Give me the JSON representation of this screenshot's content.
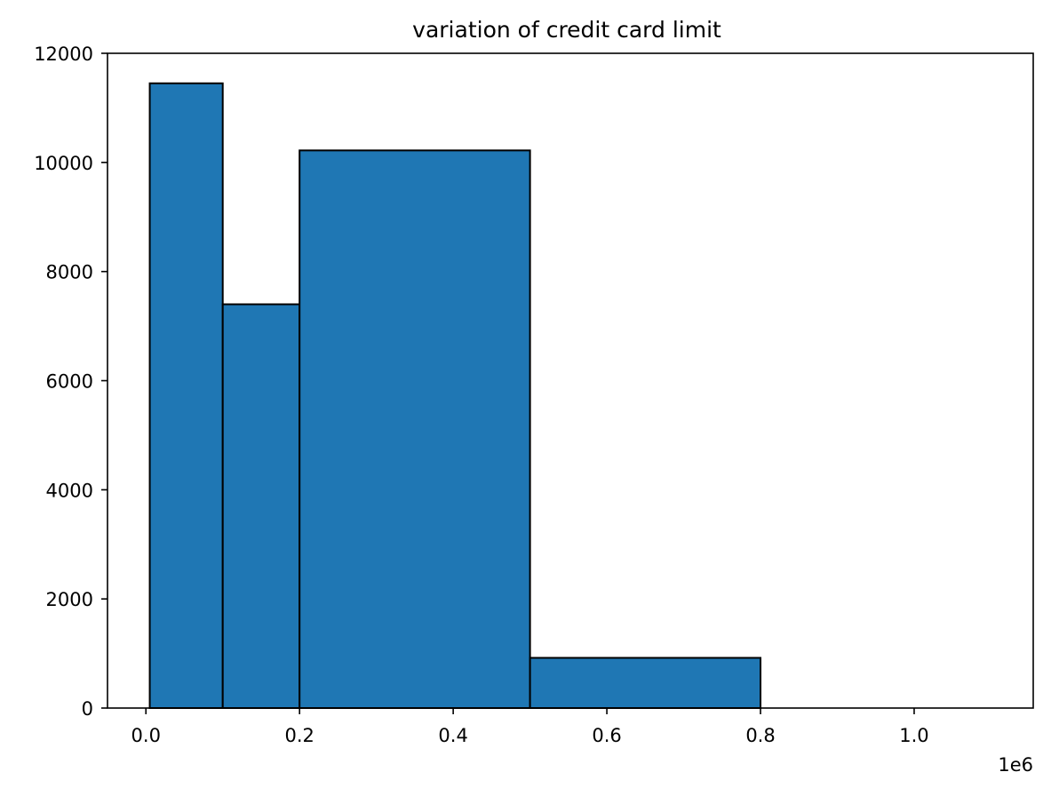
{
  "chart_data": {
    "type": "bar",
    "title": "variation of credit card limit",
    "xlabel": "",
    "ylabel": "",
    "x_offset_label": "1e6",
    "bins": [
      {
        "x0": 0.005,
        "x1": 0.1,
        "value": 11450
      },
      {
        "x0": 0.1,
        "x1": 0.2,
        "value": 7400
      },
      {
        "x0": 0.2,
        "x1": 0.5,
        "value": 10220
      },
      {
        "x0": 0.5,
        "x1": 0.8,
        "value": 920
      },
      {
        "x0": 0.8,
        "x1": 1.1,
        "value": 0
      }
    ],
    "xlim": [
      -0.05,
      1.155
    ],
    "ylim": [
      0,
      12000
    ],
    "xticks": [
      {
        "value": 0.0,
        "label": "0.0"
      },
      {
        "value": 0.2,
        "label": "0.2"
      },
      {
        "value": 0.4,
        "label": "0.4"
      },
      {
        "value": 0.6,
        "label": "0.6"
      },
      {
        "value": 0.8,
        "label": "0.8"
      },
      {
        "value": 1.0,
        "label": "1.0"
      }
    ],
    "yticks": [
      {
        "value": 0,
        "label": "0"
      },
      {
        "value": 2000,
        "label": "2000"
      },
      {
        "value": 4000,
        "label": "4000"
      },
      {
        "value": 6000,
        "label": "6000"
      },
      {
        "value": 8000,
        "label": "8000"
      },
      {
        "value": 10000,
        "label": "10000"
      },
      {
        "value": 12000,
        "label": "12000"
      }
    ],
    "grid": false,
    "bar_color": "#1f77b4",
    "edge_color": "#000000"
  }
}
